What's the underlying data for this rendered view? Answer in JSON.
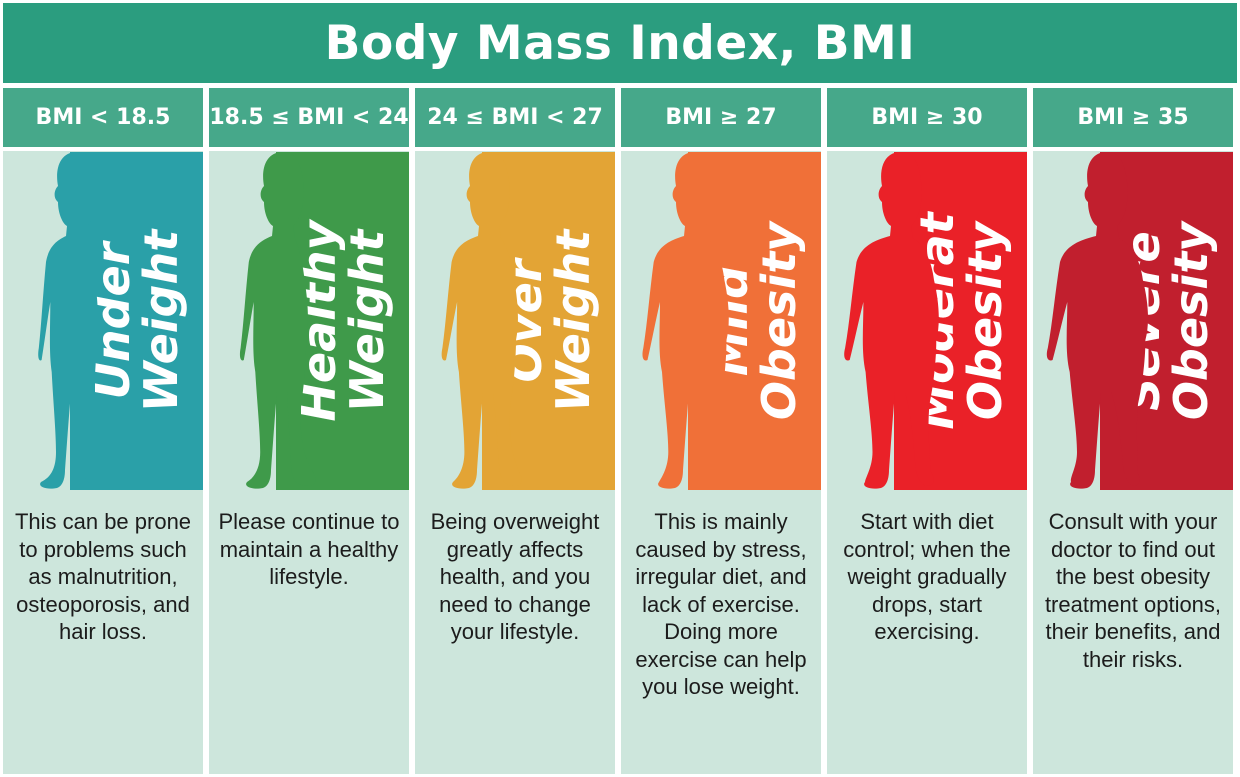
{
  "title": "Body Mass Index, BMI",
  "columns": [
    {
      "range": "BMI < 18.5",
      "category_line1": "Under",
      "category_line2": "Weight",
      "color": "#2aa0a8",
      "description": "This can be prone to problems such as malnutrition, osteoporosis, and hair loss."
    },
    {
      "range": "18.5 ≤ BMI < 24",
      "category_line1": "Healthy",
      "category_line2": "Weight",
      "color": "#3f9a4a",
      "description": "Please continue to maintain a healthy lifestyle."
    },
    {
      "range": "24 ≤ BMI < 27",
      "category_line1": "Over",
      "category_line2": "Weight",
      "color": "#e3a435",
      "description": "Being overweight greatly affects health, and you need to change your lifestyle."
    },
    {
      "range": "BMI ≥ 27",
      "category_line1": "Mild",
      "category_line2": "Obesity",
      "color": "#f07038",
      "description": "This is mainly caused by stress, irregular diet, and lack of exercise. Doing more exercise can help you lose weight."
    },
    {
      "range": "BMI ≥ 30",
      "category_line1": "Moderat",
      "category_line2": "Obesity",
      "color": "#ea2128",
      "description": "Start with diet control; when the weight gradually drops, start exercising."
    },
    {
      "range": "BMI ≥ 35",
      "category_line1": "Severe",
      "category_line2": "Obesity",
      "color": "#c11f2e",
      "description": "Consult with your doctor to find out the best obesity treatment options, their benefits, and their risks."
    }
  ]
}
